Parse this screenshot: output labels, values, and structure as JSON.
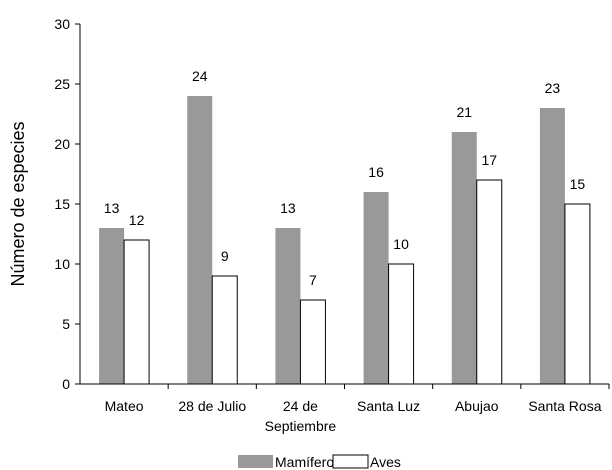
{
  "chart_data": {
    "type": "bar",
    "title": "",
    "xlabel": "",
    "ylabel": "Número de especies",
    "ylim": [
      0,
      30
    ],
    "yticks": [
      0,
      5,
      10,
      15,
      20,
      25,
      30
    ],
    "grid": false,
    "legend_position": "bottom",
    "categories": [
      [
        "Mateo"
      ],
      [
        "28 de Julio"
      ],
      [
        "24 de",
        "Septiembre"
      ],
      [
        "Santa Luz"
      ],
      [
        "Abujao"
      ],
      [
        "Santa Rosa"
      ]
    ],
    "series": [
      {
        "name": "Mamíferos",
        "color": "#999999",
        "values": [
          13,
          24,
          13,
          16,
          21,
          23
        ]
      },
      {
        "name": "Aves",
        "color": "#ffffff",
        "values": [
          12,
          9,
          7,
          10,
          17,
          15
        ]
      }
    ]
  }
}
